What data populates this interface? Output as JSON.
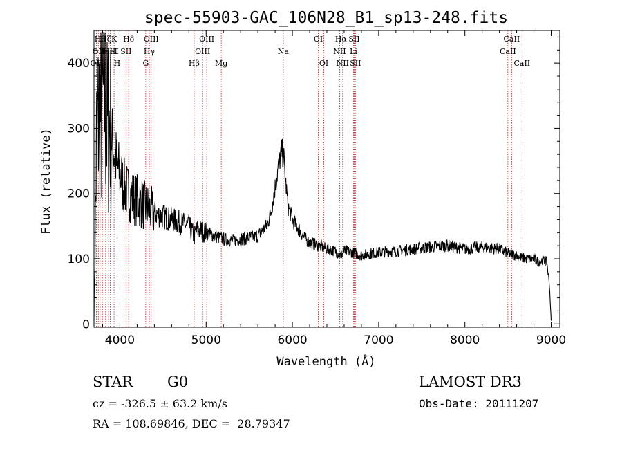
{
  "chart_data": {
    "type": "line",
    "title": "spec-55903-GAC_106N28_B1_sp13-248.fits",
    "xlabel": "Wavelength (Å)",
    "ylabel": "Flux (relative)",
    "xlim": [
      3700,
      9100
    ],
    "ylim": [
      -5,
      450
    ],
    "xticks": [
      4000,
      5000,
      6000,
      7000,
      8000,
      9000
    ],
    "yticks": [
      0,
      100,
      200,
      300,
      400
    ],
    "line_color": "#000000",
    "marker_color": "#b22222",
    "spectrum": {
      "x": [
        3700,
        3730,
        3760,
        3790,
        3820,
        3850,
        3880,
        3910,
        3940,
        3970,
        4000,
        4050,
        4100,
        4150,
        4200,
        4250,
        4300,
        4350,
        4400,
        4500,
        4600,
        4700,
        4800,
        4860,
        4900,
        5000,
        5100,
        5200,
        5300,
        5400,
        5500,
        5600,
        5700,
        5750,
        5800,
        5850,
        5880,
        5900,
        5920,
        5950,
        6000,
        6050,
        6100,
        6150,
        6200,
        6300,
        6400,
        6500,
        6563,
        6600,
        6700,
        6800,
        6900,
        7000,
        7200,
        7400,
        7600,
        7800,
        8000,
        8200,
        8400,
        8500,
        8600,
        8700,
        8800,
        8850,
        8900,
        8950,
        8980,
        9000
      ],
      "y": [
        10,
        280,
        330,
        310,
        360,
        300,
        310,
        280,
        260,
        240,
        230,
        210,
        200,
        195,
        190,
        185,
        180,
        175,
        170,
        165,
        160,
        155,
        150,
        135,
        145,
        140,
        135,
        130,
        128,
        130,
        132,
        135,
        150,
        170,
        210,
        250,
        265,
        255,
        220,
        180,
        160,
        150,
        140,
        130,
        125,
        120,
        115,
        112,
        105,
        112,
        110,
        105,
        108,
        110,
        112,
        115,
        118,
        120,
        115,
        118,
        115,
        108,
        105,
        100,
        100,
        95,
        98,
        95,
        60,
        5
      ]
    },
    "line_markers": [
      {
        "wavelength": 3727,
        "label": "OII",
        "row": 2
      },
      {
        "wavelength": 3750,
        "label": "OII",
        "row": 1
      },
      {
        "wavelength": 3771,
        "label": "Hθ",
        "row": 0
      },
      {
        "wavelength": 3798,
        "label": "Hη",
        "row": 2
      },
      {
        "wavelength": 3835,
        "label": "Hζ",
        "row": 0
      },
      {
        "wavelength": 3869,
        "label": "NeIII",
        "row": 1
      },
      {
        "wavelength": 3889,
        "label": "HeI",
        "row": 1
      },
      {
        "wavelength": 3933,
        "label": "K",
        "row": 0
      },
      {
        "wavelength": 3968,
        "label": "H",
        "row": 2
      },
      {
        "wavelength": 4071,
        "label": "SII",
        "row": 1
      },
      {
        "wavelength": 4102,
        "label": "Hδ",
        "row": 0
      },
      {
        "wavelength": 4300,
        "label": "G",
        "row": 2
      },
      {
        "wavelength": 4341,
        "label": "Hγ",
        "row": 1
      },
      {
        "wavelength": 4363,
        "label": "OIII",
        "row": 0
      },
      {
        "wavelength": 4861,
        "label": "Hβ",
        "row": 2
      },
      {
        "wavelength": 4959,
        "label": "OIII",
        "row": 1
      },
      {
        "wavelength": 5007,
        "label": "OIII",
        "row": 0
      },
      {
        "wavelength": 5175,
        "label": "Mg",
        "row": 2
      },
      {
        "wavelength": 5894,
        "label": "Na",
        "row": 1
      },
      {
        "wavelength": 6300,
        "label": "OI",
        "row": 0
      },
      {
        "wavelength": 6364,
        "label": "OI",
        "row": 2
      },
      {
        "wavelength": 6548,
        "label": "NII",
        "row": 1
      },
      {
        "wavelength": 6563,
        "label": "Hα",
        "row": 0
      },
      {
        "wavelength": 6583,
        "label": "NII",
        "row": 2
      },
      {
        "wavelength": 6708,
        "label": "Li",
        "row": 1
      },
      {
        "wavelength": 6716,
        "label": "SII",
        "row": 0
      },
      {
        "wavelength": 6731,
        "label": "SII",
        "row": 2
      },
      {
        "wavelength": 8498,
        "label": "CaII",
        "row": 1
      },
      {
        "wavelength": 8542,
        "label": "CaII",
        "row": 0
      },
      {
        "wavelength": 8662,
        "label": "CaII",
        "row": 2
      }
    ]
  },
  "info": {
    "class": "STAR",
    "subclass": "G0",
    "survey": "LAMOST DR3",
    "cz": "cz = -326.5 ± 63.2 km/s",
    "obs_date": "Obs-Date: 20111207",
    "radec": "RA = 108.69846, DEC =  28.79347"
  }
}
